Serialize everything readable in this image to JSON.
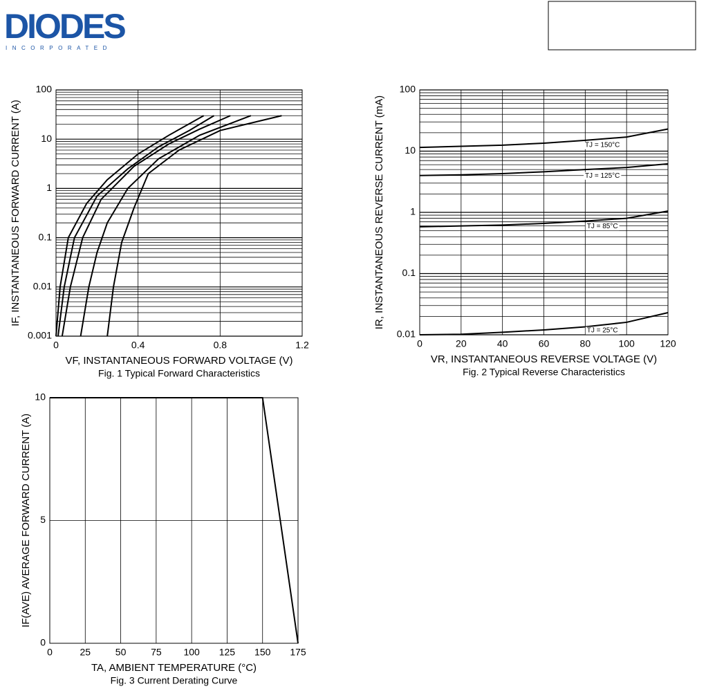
{
  "header": {
    "logo": "DIODES",
    "tagline": "INCORPORATED"
  },
  "chart_data": [
    {
      "type": "line",
      "title": "Fig. 1 Typical Forward Characteristics",
      "x_label": "VF, INSTANTANEOUS FORWARD VOLTAGE (V)",
      "y_label": "IF, INSTANTANEOUS FORWARD CURRENT (A)",
      "xlim": [
        0,
        1.2
      ],
      "xticks": [
        0,
        0.4,
        0.8,
        1.2
      ],
      "ylim": [
        0.001,
        100
      ],
      "yticks": [
        0.001,
        0.01,
        0.1,
        1,
        10,
        100
      ],
      "log_y": true,
      "grid": true,
      "series": [
        {
          "color": "#000000",
          "x": [
            0,
            0.02,
            0.06,
            0.15,
            0.25,
            0.4,
            0.55,
            0.72
          ],
          "values": [
            0.001,
            0.01,
            0.1,
            0.5,
            1.5,
            5,
            12,
            30
          ]
        },
        {
          "color": "#000000",
          "x": [
            0.01,
            0.04,
            0.09,
            0.2,
            0.35,
            0.5,
            0.65,
            0.77
          ],
          "values": [
            0.001,
            0.01,
            0.1,
            0.7,
            2.5,
            7,
            15,
            30
          ]
        },
        {
          "color": "#000000",
          "x": [
            0.03,
            0.07,
            0.13,
            0.22,
            0.38,
            0.55,
            0.7,
            0.85
          ],
          "values": [
            0.001,
            0.01,
            0.1,
            0.6,
            2.8,
            8,
            16,
            30
          ]
        },
        {
          "color": "#000000",
          "x": [
            0.12,
            0.16,
            0.2,
            0.25,
            0.35,
            0.5,
            0.7,
            0.95
          ],
          "values": [
            0.001,
            0.01,
            0.05,
            0.2,
            1,
            4,
            12,
            30
          ]
        },
        {
          "color": "#000000",
          "x": [
            0.25,
            0.28,
            0.32,
            0.38,
            0.45,
            0.6,
            0.8,
            1.1
          ],
          "values": [
            0.001,
            0.01,
            0.08,
            0.4,
            2,
            6,
            15,
            30
          ]
        }
      ]
    },
    {
      "type": "line",
      "title": "Fig. 2 Typical Reverse Characteristics",
      "x_label": "VR, INSTANTANEOUS REVERSE VOLTAGE (V)",
      "y_label": "IR, INSTANTANEOUS REVERSE CURRENT (mA)",
      "xlim": [
        0,
        120
      ],
      "xticks": [
        0,
        20,
        40,
        60,
        80,
        100,
        120
      ],
      "ylim": [
        0.01,
        100
      ],
      "yticks": [
        0.01,
        0.1,
        1,
        10,
        100
      ],
      "log_y": true,
      "grid": true,
      "x": [
        0,
        20,
        40,
        60,
        80,
        100,
        120
      ],
      "series": [
        {
          "name": "TJ = 150°C",
          "color": "#000000",
          "values": [
            11.5,
            12,
            12.5,
            13.5,
            15,
            17,
            23
          ]
        },
        {
          "name": "TJ = 125°C",
          "color": "#000000",
          "values": [
            4,
            4.1,
            4.3,
            4.6,
            5,
            5.4,
            6.2
          ]
        },
        {
          "name": "TJ = 85°C",
          "color": "#000000",
          "values": [
            0.58,
            0.6,
            0.62,
            0.66,
            0.72,
            0.8,
            1.05
          ]
        },
        {
          "name": "TJ = 25°C",
          "color": "#000000",
          "values": [
            0.01,
            0.0102,
            0.011,
            0.012,
            0.0135,
            0.016,
            0.023
          ]
        }
      ]
    },
    {
      "type": "line",
      "title": "Fig. 3 Current Derating Curve",
      "x_label": "TA, AMBIENT TEMPERATURE (°C)",
      "y_label": "IF(AVE) AVERAGE FORWARD CURRENT (A)",
      "xlim": [
        0,
        175
      ],
      "xticks": [
        0,
        25,
        50,
        75,
        100,
        125,
        150,
        175
      ],
      "ylim": [
        0,
        10
      ],
      "yticks": [
        0,
        5,
        10
      ],
      "log_y": false,
      "grid": true,
      "x": [
        0,
        150,
        175
      ],
      "series": [
        {
          "color": "#000000",
          "values": [
            10,
            10,
            0
          ]
        }
      ]
    }
  ]
}
